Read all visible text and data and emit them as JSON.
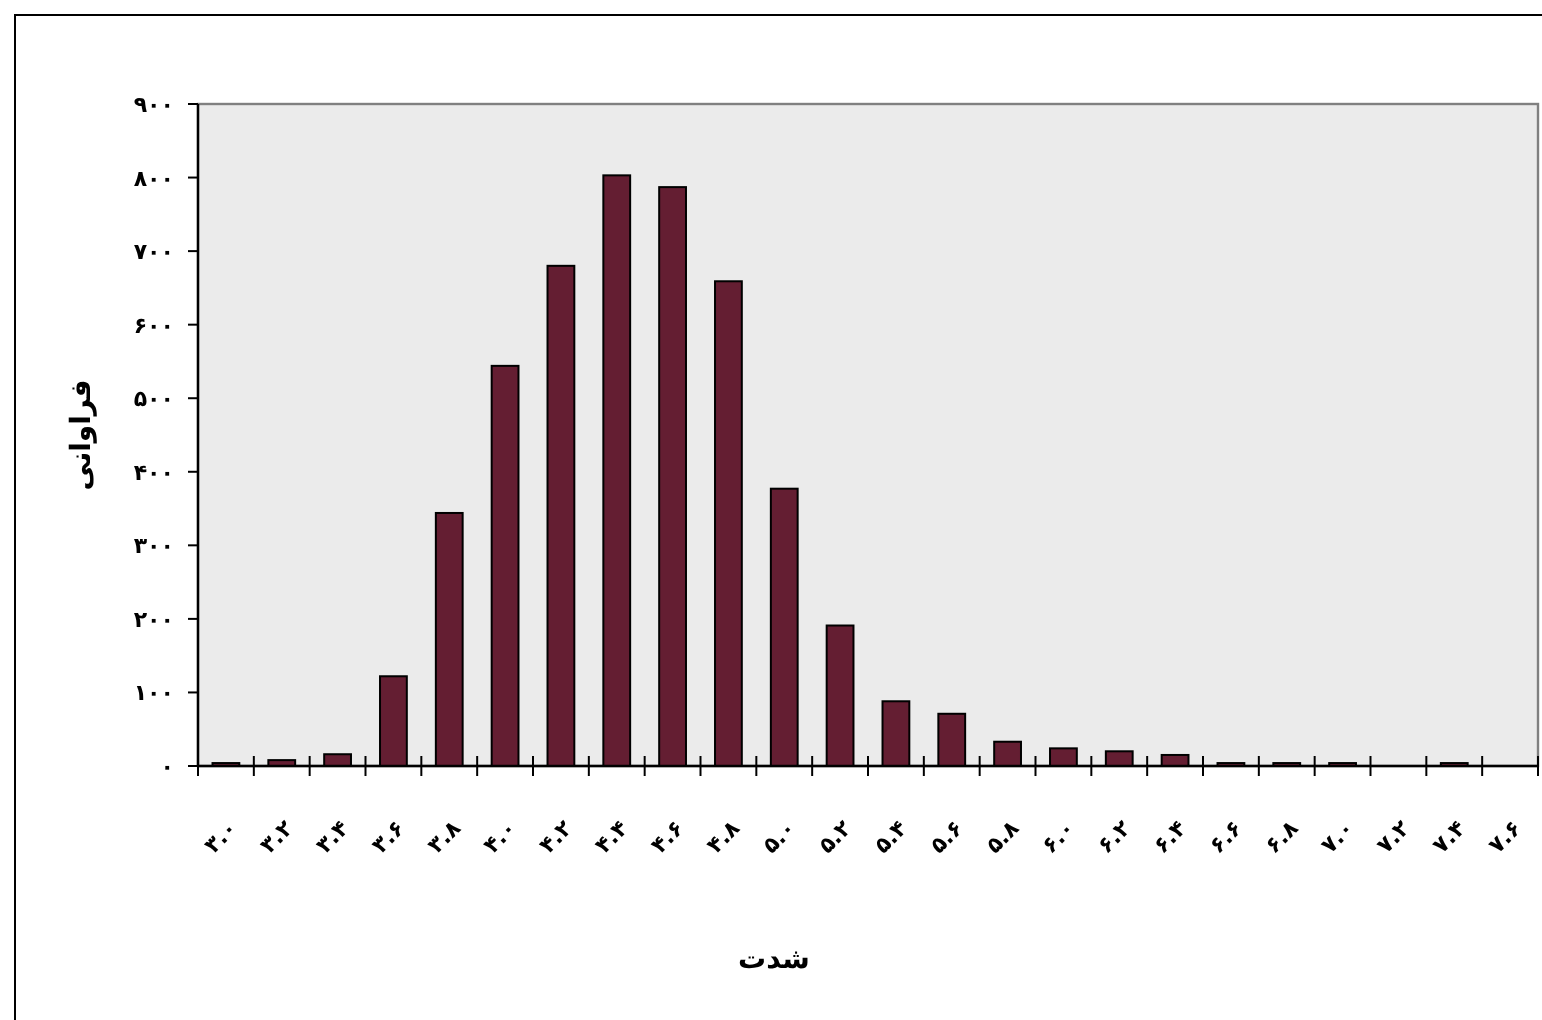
{
  "chart_data": {
    "type": "bar",
    "xlabel": "شدت",
    "ylabel": "فراوانی",
    "categories": [
      "۳.۰",
      "۳.۲",
      "۳.۴",
      "۳.۶",
      "۳.۸",
      "۴.۰",
      "۴.۲",
      "۴.۴",
      "۴.۶",
      "۴.۸",
      "۵.۰",
      "۵.۲",
      "۵.۴",
      "۵.۶",
      "۵.۸",
      "۶.۰",
      "۶.۲",
      "۶.۴",
      "۶.۶",
      "۶.۸",
      "۷.۰",
      "۷.۲",
      "۷.۴",
      "۷.۶"
    ],
    "values": [
      4,
      8,
      16,
      122,
      344,
      544,
      680,
      803,
      787,
      659,
      377,
      191,
      88,
      71,
      33,
      24,
      20,
      15,
      4,
      4,
      4,
      0,
      4,
      0
    ],
    "color": "#641e32",
    "ylim": [
      0,
      900
    ],
    "yticks": [
      {
        "value": 0,
        "label": "۰"
      },
      {
        "value": 100,
        "label": "۱۰۰"
      },
      {
        "value": 200,
        "label": "۲۰۰"
      },
      {
        "value": 300,
        "label": "۳۰۰"
      },
      {
        "value": 400,
        "label": "۴۰۰"
      },
      {
        "value": 500,
        "label": "۵۰۰"
      },
      {
        "value": 600,
        "label": "۶۰۰"
      },
      {
        "value": 700,
        "label": "۷۰۰"
      },
      {
        "value": 800,
        "label": "۸۰۰"
      },
      {
        "value": 900,
        "label": "۹۰۰"
      }
    ],
    "grid": false
  }
}
